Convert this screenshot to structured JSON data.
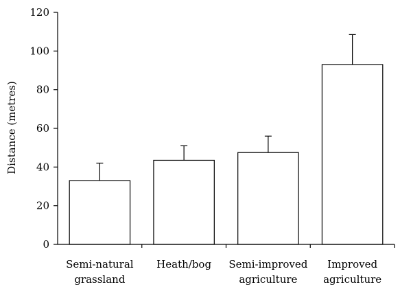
{
  "chart_data": {
    "type": "bar",
    "categories": [
      [
        "Semi-natural",
        "grassland"
      ],
      [
        "Heath/bog"
      ],
      [
        "Semi-improved",
        "agriculture"
      ],
      [
        "Improved",
        "agriculture"
      ]
    ],
    "values": [
      33,
      43.5,
      47.5,
      93
    ],
    "errors": [
      9,
      7.5,
      8.5,
      15.5
    ],
    "ylabel": "Distance (metres)",
    "ylim": [
      0,
      120
    ],
    "yticks": [
      0,
      20,
      40,
      60,
      80,
      100,
      120
    ],
    "grid": false,
    "legend": "none",
    "bar_fill": "#ffffff",
    "stroke_color": "#000000"
  }
}
